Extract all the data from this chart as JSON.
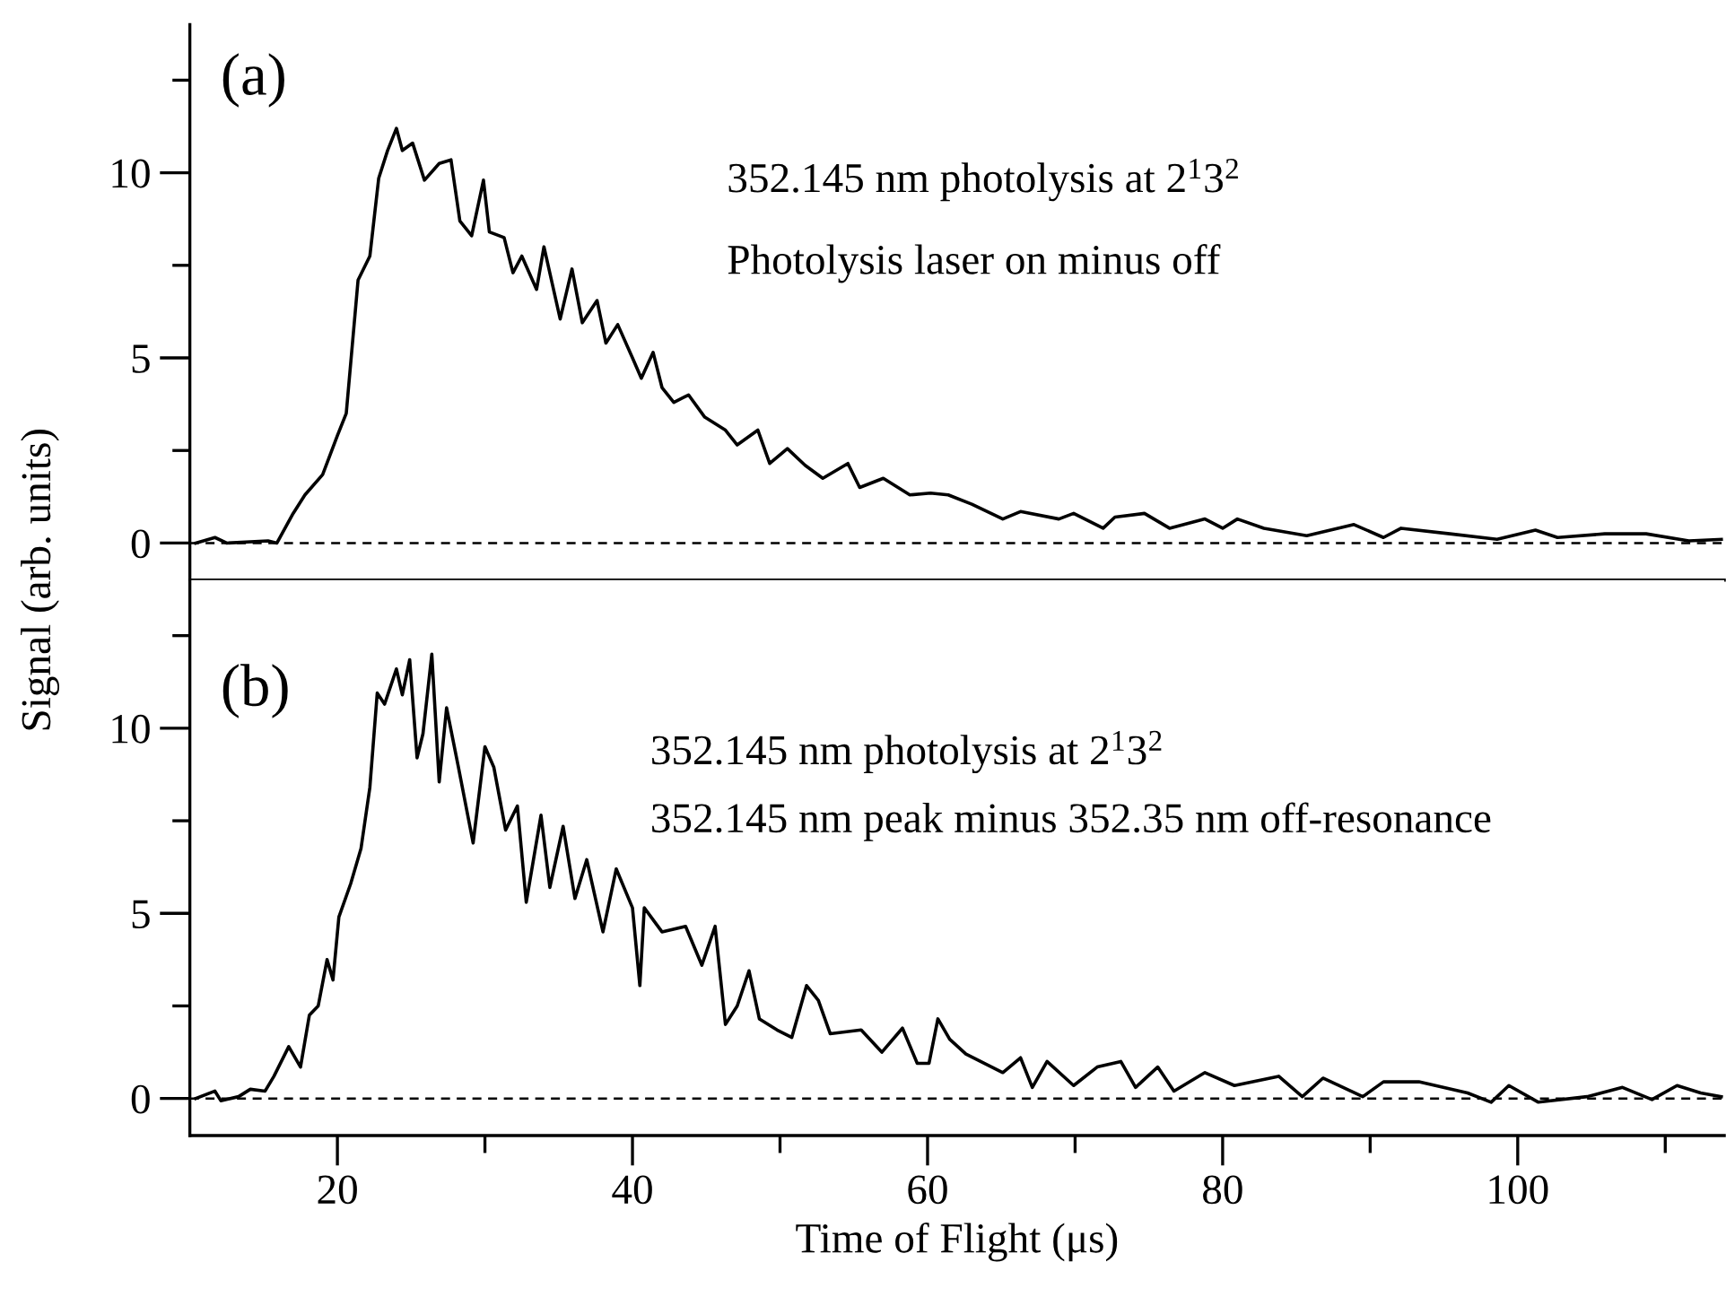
{
  "chart_data": [
    {
      "type": "line",
      "ylabel": "Signal (arb. units)",
      "annotations": [
        "(a)",
        "352.145 nm photolysis at 2$^{1}$3$^{2}$",
        "Photolysis laser on minus off"
      ],
      "xlim": [
        10,
        114
      ],
      "xticks": [
        20,
        {
          "value": 30,
          "label": null
        },
        40,
        {
          "value": 50,
          "label": null
        },
        60,
        {
          "value": 70,
          "label": null
        },
        80,
        {
          "value": 90,
          "label": null
        },
        100,
        {
          "value": 110,
          "label": null
        }
      ],
      "ylim": [
        -1,
        14
      ],
      "yticks": [
        0,
        {
          "value": 2.5,
          "label": null
        },
        5,
        {
          "value": 7.5,
          "label": null
        },
        10,
        {
          "value": 12.5,
          "label": null
        }
      ],
      "tick_labels": "y",
      "grid": false,
      "legend": false,
      "ref_lines": [
        {
          "axis": "y",
          "value": 0,
          "line_style": "dashed",
          "color": "#000000"
        }
      ],
      "series": [
        {
          "color": "#000000",
          "x": [
            10.4,
            11.7,
            12.5,
            15.3,
            15.9,
            17.0,
            17.8,
            19.0,
            20.0,
            20.6,
            21.4,
            22.2,
            22.8,
            23.4,
            24.0,
            24.4,
            25.1,
            25.9,
            26.9,
            27.7,
            28.3,
            29.1,
            29.9,
            30.3,
            31.3,
            31.9,
            32.5,
            33.5,
            34.0,
            35.1,
            35.9,
            36.6,
            37.6,
            38.2,
            39.0,
            40.0,
            40.6,
            41.4,
            42.0,
            42.8,
            43.8,
            44.9,
            46.3,
            47.1,
            48.5,
            49.3,
            50.5,
            51.7,
            52.9,
            54.6,
            55.4,
            57.0,
            58.8,
            60.2,
            61.4,
            63.0,
            65.1,
            66.3,
            68.9,
            69.9,
            71.9,
            72.7,
            74.7,
            76.4,
            78.8,
            80.0,
            81.0,
            82.8,
            85.7,
            88.9,
            90.9,
            92.1,
            95.4,
            98.6,
            101.2,
            102.7,
            105.9,
            108.7,
            111.6,
            113.8
          ],
          "values": [
            0,
            0.15,
            0,
            0.06,
            0,
            0.8,
            1.3,
            1.85,
            2.9,
            3.5,
            7.1,
            7.75,
            9.85,
            10.6,
            11.2,
            10.6,
            10.8,
            9.8,
            10.25,
            10.35,
            8.7,
            8.3,
            9.8,
            8.4,
            8.25,
            7.3,
            7.75,
            6.85,
            8.0,
            6.05,
            7.4,
            5.95,
            6.55,
            5.4,
            5.9,
            5.0,
            4.45,
            5.15,
            4.2,
            3.8,
            4.0,
            3.4,
            3.05,
            2.65,
            3.05,
            2.15,
            2.55,
            2.1,
            1.75,
            2.15,
            1.5,
            1.75,
            1.3,
            1.35,
            1.3,
            1.05,
            0.65,
            0.85,
            0.65,
            0.8,
            0.4,
            0.7,
            0.8,
            0.4,
            0.65,
            0.4,
            0.65,
            0.4,
            0.2,
            0.5,
            0.15,
            0.4,
            0.25,
            0.1,
            0.35,
            0.15,
            0.25,
            0.25,
            0.06,
            0.1
          ]
        }
      ]
    },
    {
      "type": "line",
      "xlabel": "Time of Flight (μs)",
      "annotations": [
        "(b)",
        "352.145 nm photolysis at 2$^{1}$3$^{2}$",
        "352.145 nm peak minus 352.35 nm off-resonance"
      ],
      "xlim": [
        10,
        114
      ],
      "xticks": [
        20,
        {
          "value": 30,
          "label": null
        },
        40,
        {
          "value": 50,
          "label": null
        },
        60,
        {
          "value": 70,
          "label": null
        },
        80,
        {
          "value": 90,
          "label": null
        },
        100,
        {
          "value": 110,
          "label": null
        }
      ],
      "ylim": [
        -1,
        14
      ],
      "yticks": [
        0,
        {
          "value": 2.5,
          "label": null
        },
        5,
        {
          "value": 7.5,
          "label": null
        },
        10,
        {
          "value": 12.5,
          "label": null
        }
      ],
      "grid": false,
      "legend": false,
      "ref_lines": [
        {
          "axis": "y",
          "value": 0,
          "line_style": "dashed",
          "color": "#000000"
        }
      ],
      "series": [
        {
          "color": "#000000",
          "x": [
            10.4,
            11.7,
            12.1,
            13.3,
            14.1,
            15.1,
            15.7,
            16.7,
            17.5,
            18.1,
            18.7,
            19.3,
            19.7,
            20.1,
            20.9,
            21.6,
            22.2,
            22.7,
            23.2,
            24.0,
            24.4,
            24.9,
            25.4,
            25.8,
            26.4,
            26.9,
            27.4,
            28.2,
            29.2,
            30.0,
            30.6,
            31.4,
            32.2,
            32.8,
            33.8,
            34.4,
            35.3,
            36.1,
            36.9,
            38.0,
            38.9,
            40.0,
            40.5,
            40.8,
            42.0,
            43.6,
            44.7,
            45.6,
            46.3,
            47.1,
            47.9,
            48.6,
            49.8,
            50.8,
            51.8,
            52.6,
            53.4,
            55.5,
            56.9,
            58.3,
            59.3,
            60.1,
            60.7,
            61.5,
            62.6,
            65.1,
            66.3,
            67.1,
            68.1,
            69.9,
            71.5,
            73.1,
            74.1,
            75.6,
            76.7,
            78.8,
            80.8,
            83.8,
            85.4,
            86.8,
            89.5,
            90.9,
            93.3,
            96.6,
            98.2,
            99.4,
            101.4,
            104.7,
            107.1,
            109.1,
            110.8,
            112.4,
            113.8
          ],
          "values": [
            0,
            0.2,
            -0.06,
            0.05,
            0.25,
            0.2,
            0.6,
            1.4,
            0.85,
            2.25,
            2.5,
            3.75,
            3.2,
            4.9,
            5.8,
            6.75,
            8.4,
            10.95,
            10.65,
            11.6,
            10.9,
            11.85,
            9.2,
            9.85,
            12.0,
            8.55,
            10.55,
            8.95,
            6.9,
            9.5,
            8.95,
            7.25,
            7.9,
            5.3,
            7.65,
            5.7,
            7.35,
            5.4,
            6.45,
            4.5,
            6.2,
            5.15,
            3.05,
            5.15,
            4.5,
            4.65,
            3.6,
            4.65,
            2.0,
            2.5,
            3.45,
            2.15,
            1.85,
            1.65,
            3.05,
            2.65,
            1.75,
            1.85,
            1.25,
            1.9,
            0.95,
            0.95,
            2.15,
            1.6,
            1.2,
            0.7,
            1.1,
            0.3,
            1.0,
            0.35,
            0.85,
            1.0,
            0.3,
            0.85,
            0.2,
            0.7,
            0.35,
            0.6,
            0.05,
            0.55,
            0.05,
            0.45,
            0.45,
            0.15,
            -0.1,
            0.35,
            -0.1,
            0.05,
            0.3,
            -0.03,
            0.35,
            0.15,
            0.05
          ]
        }
      ]
    }
  ]
}
